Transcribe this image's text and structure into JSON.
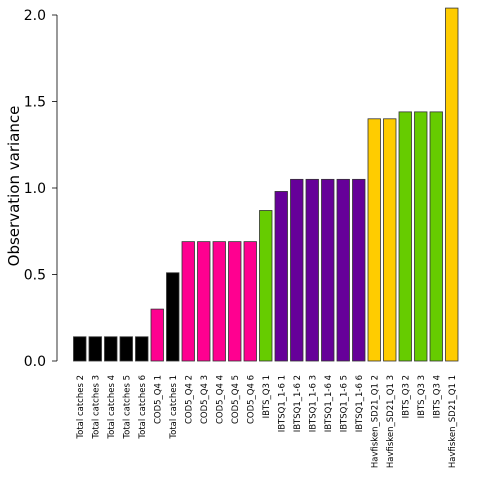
{
  "chart_data": {
    "type": "bar",
    "title": "",
    "xlabel": "",
    "ylabel": "Observation variance",
    "ylim": [
      0,
      2.0
    ],
    "yticks": [
      0.0,
      0.5,
      1.0,
      1.5,
      2.0
    ],
    "ytick_labels": [
      "0.0",
      "0.5",
      "1.0",
      "1.5",
      "2.0"
    ],
    "grid": false,
    "legend": "none",
    "categories": [
      "Total catches 2",
      "Total catches 3",
      "Total catches 4",
      "Total catches 5",
      "Total catches 6",
      "COD5_Q4 1",
      "Total catches 1",
      "COD5_Q4 2",
      "COD5_Q4 3",
      "COD5_Q4 4",
      "COD5_Q4 5",
      "COD5_Q4 6",
      "IBTS_Q3 1",
      "IBTSQ1_1-6 1",
      "IBTSQ1_1-6 2",
      "IBTSQ1_1-6 3",
      "IBTSQ1_1-6 4",
      "IBTSQ1_1-6 5",
      "IBTSQ1_1-6 6",
      "Havfisken_SD21_Q1 2",
      "Havfisken_SD21_Q1 3",
      "IBTS_Q3 2",
      "IBTS_Q3 3",
      "IBTS_Q3 4",
      "Havfisken_SD21_Q1 1"
    ],
    "values": [
      0.14,
      0.14,
      0.14,
      0.14,
      0.14,
      0.3,
      0.51,
      0.69,
      0.69,
      0.69,
      0.69,
      0.69,
      0.87,
      0.98,
      1.05,
      1.05,
      1.05,
      1.05,
      1.05,
      1.4,
      1.4,
      1.44,
      1.44,
      1.44,
      2.04
    ],
    "colors": [
      "#000000",
      "#000000",
      "#000000",
      "#000000",
      "#000000",
      "#ff0090",
      "#000000",
      "#ff0090",
      "#ff0090",
      "#ff0090",
      "#ff0090",
      "#ff0090",
      "#66cc00",
      "#660099",
      "#660099",
      "#660099",
      "#660099",
      "#660099",
      "#660099",
      "#ffcc00",
      "#ffcc00",
      "#66cc00",
      "#66cc00",
      "#66cc00",
      "#ffcc00"
    ]
  }
}
